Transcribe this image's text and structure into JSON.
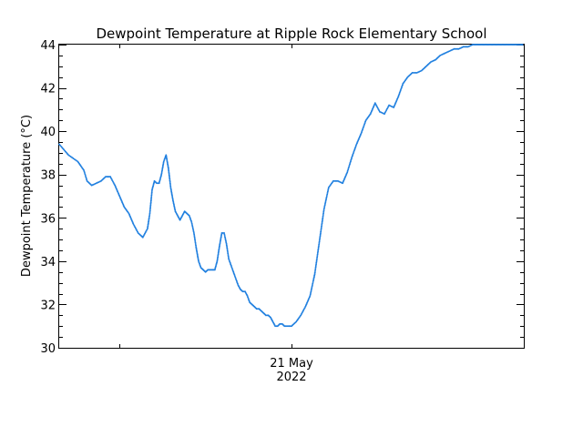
{
  "chart_data": {
    "type": "scatter",
    "title": "Dewpoint Temperature at Ripple Rock Elementary School",
    "xlabel": "",
    "ylabel": "Dewpoint Temperature (°C)",
    "ylim": [
      30,
      44
    ],
    "xlim": [
      0,
      1
    ],
    "y_ticks": [
      30,
      32,
      34,
      36,
      38,
      40,
      42,
      44
    ],
    "x_tick_labels": [
      {
        "x": 0.5,
        "line1": "21 May",
        "line2": "2022"
      }
    ],
    "grid": false,
    "series_color": "#1f7fdf",
    "series": [
      {
        "x": [
          0.0,
          0.02,
          0.04,
          0.053,
          0.06,
          0.07,
          0.08,
          0.09,
          0.1,
          0.11,
          0.12,
          0.13,
          0.14,
          0.15,
          0.16,
          0.17,
          0.18,
          0.19,
          0.195,
          0.2,
          0.205,
          0.21,
          0.215,
          0.22,
          0.225,
          0.23,
          0.235,
          0.24,
          0.245,
          0.25,
          0.255,
          0.26,
          0.265,
          0.27,
          0.275,
          0.28,
          0.285,
          0.29,
          0.295,
          0.3,
          0.305,
          0.31,
          0.315,
          0.32,
          0.325,
          0.33,
          0.335,
          0.34,
          0.345,
          0.35,
          0.355,
          0.36,
          0.365,
          0.37,
          0.375,
          0.38,
          0.385,
          0.39,
          0.395,
          0.4,
          0.405,
          0.41,
          0.415,
          0.42,
          0.425,
          0.43,
          0.435,
          0.44,
          0.445,
          0.45,
          0.455,
          0.46,
          0.465,
          0.47,
          0.475,
          0.48,
          0.485,
          0.49,
          0.495,
          0.5,
          0.51,
          0.52,
          0.53,
          0.54,
          0.55,
          0.56,
          0.57,
          0.58,
          0.59,
          0.6,
          0.61,
          0.62,
          0.63,
          0.64,
          0.65,
          0.66,
          0.67,
          0.68,
          0.69,
          0.7,
          0.71,
          0.72,
          0.73,
          0.74,
          0.75,
          0.76,
          0.77,
          0.78,
          0.79,
          0.8,
          0.81,
          0.82,
          0.83,
          0.84,
          0.85,
          0.86,
          0.87,
          0.88,
          0.89,
          0.9,
          0.91,
          0.92,
          0.93,
          0.94,
          0.95,
          0.96,
          0.97,
          0.98,
          0.99,
          1.0
        ],
        "y": [
          39.4,
          38.9,
          38.6,
          38.2,
          37.7,
          37.5,
          37.6,
          37.7,
          37.9,
          37.9,
          37.5,
          37.0,
          36.5,
          36.2,
          35.7,
          35.3,
          35.1,
          35.5,
          36.2,
          37.3,
          37.7,
          37.6,
          37.6,
          38.0,
          38.6,
          38.9,
          38.3,
          37.4,
          36.8,
          36.3,
          36.1,
          35.9,
          36.1,
          36.3,
          36.2,
          36.1,
          35.8,
          35.3,
          34.6,
          34.0,
          33.7,
          33.6,
          33.5,
          33.6,
          33.6,
          33.6,
          33.6,
          34.0,
          34.7,
          35.3,
          35.3,
          34.8,
          34.1,
          33.8,
          33.5,
          33.2,
          32.9,
          32.7,
          32.6,
          32.6,
          32.4,
          32.1,
          32.0,
          31.9,
          31.8,
          31.8,
          31.7,
          31.6,
          31.5,
          31.5,
          31.4,
          31.2,
          31.0,
          31.0,
          31.1,
          31.1,
          31.0,
          31.0,
          31.0,
          31.0,
          31.2,
          31.5,
          31.9,
          32.4,
          33.4,
          34.9,
          36.4,
          37.4,
          37.7,
          37.7,
          37.6,
          38.1,
          38.8,
          39.4,
          39.9,
          40.5,
          40.8,
          41.3,
          40.9,
          40.8,
          41.2,
          41.1,
          41.6,
          42.2,
          42.5,
          42.7,
          42.7,
          42.8,
          43.0,
          43.2,
          43.3,
          43.5,
          43.6,
          43.7,
          43.8,
          43.8,
          43.9,
          43.9,
          44.0,
          44.0,
          44.0,
          44.0,
          44.0,
          44.0,
          44.0,
          44.0,
          44.0,
          44.0,
          44.0,
          44.0
        ]
      }
    ]
  }
}
